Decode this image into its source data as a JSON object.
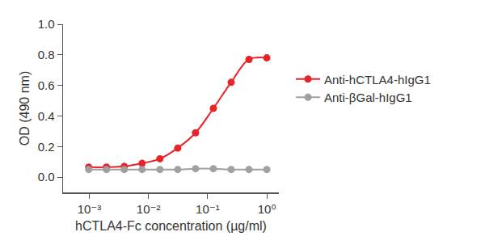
{
  "chart_data": {
    "type": "line",
    "x_label": "hCTLA4-Fc concentration (µg/ml)",
    "y_label": "OD (490 nm)",
    "x": [
      0.000977,
      0.00195,
      0.0039,
      0.0078,
      0.0156,
      0.03125,
      0.0625,
      0.125,
      0.25,
      0.5,
      1
    ],
    "series": [
      {
        "name": "Anti-hCTLA4-hIgG1",
        "color": "#e8232a",
        "marker": "circle",
        "line_style": "solid",
        "values": [
          0.065,
          0.065,
          0.07,
          0.09,
          0.12,
          0.19,
          0.29,
          0.45,
          0.62,
          0.77,
          0.78
        ]
      },
      {
        "name": "Anti-βGal-hIgG1",
        "color": "#a0a0a0",
        "marker": "circle",
        "line_style": "solid",
        "values": [
          0.05,
          0.05,
          0.05,
          0.05,
          0.05,
          0.05,
          0.055,
          0.055,
          0.05,
          0.05,
          0.05
        ]
      }
    ],
    "log": "x",
    "xlim": [
      0.00036,
      1.6
    ],
    "xticks": [
      {
        "value": 0.001,
        "label": "10⁻³"
      },
      {
        "value": 0.01,
        "label": "10⁻²"
      },
      {
        "value": 0.1,
        "label": "10⁻¹"
      },
      {
        "value": 1,
        "label": "10⁰"
      }
    ],
    "ylim": [
      -0.1,
      1.0
    ],
    "yticks": [
      {
        "value": 0,
        "label": "0.0"
      },
      {
        "value": 0.2,
        "label": "0.2"
      },
      {
        "value": 0.4,
        "label": "0.4"
      },
      {
        "value": 0.6,
        "label": "0.6"
      },
      {
        "value": 0.8,
        "label": "0.8"
      },
      {
        "value": 1.0,
        "label": "1.0"
      }
    ],
    "grid": false,
    "legend": "right"
  }
}
